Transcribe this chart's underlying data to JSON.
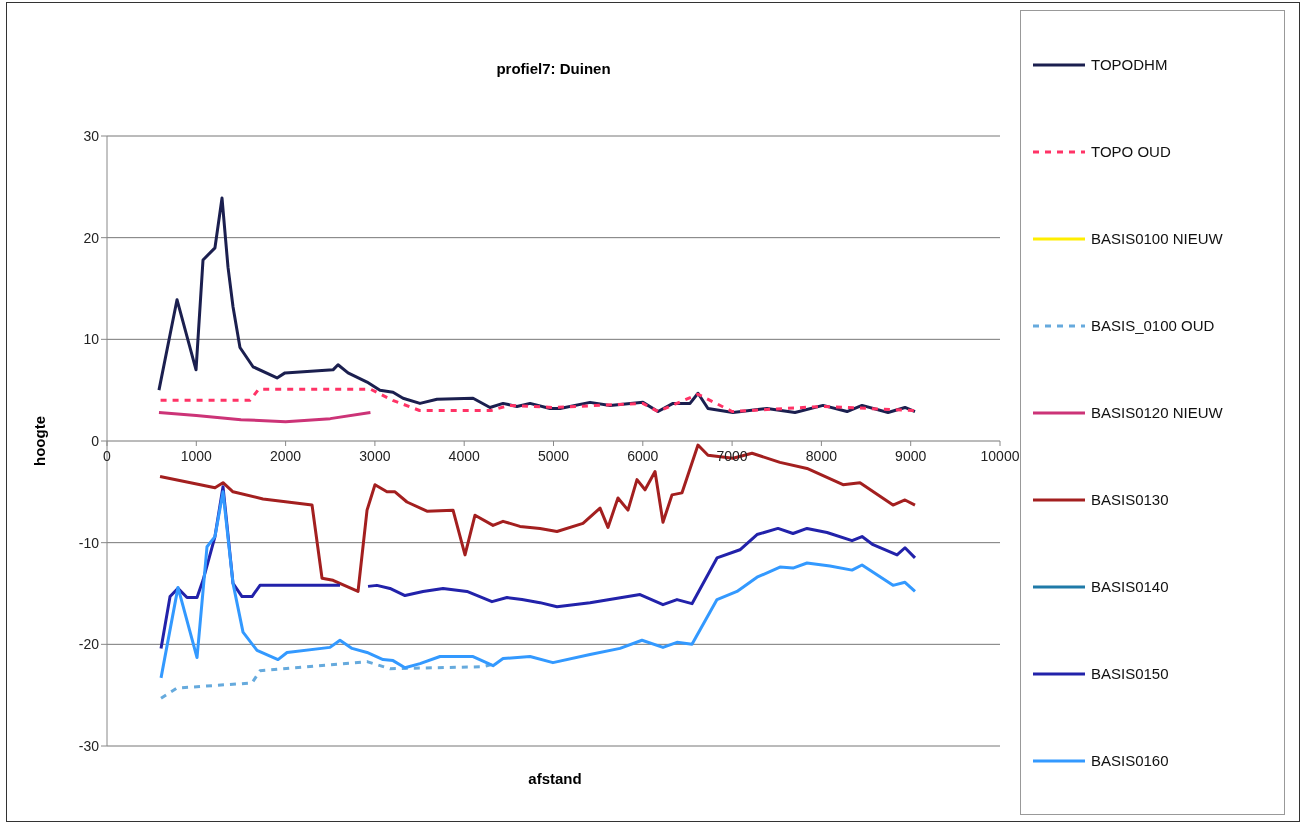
{
  "chart_data": {
    "type": "line",
    "title": "profiel7: Duinen",
    "xlabel": "afstand",
    "ylabel": "hoogte",
    "xlim": [
      0,
      10000
    ],
    "xticks": [
      0,
      1000,
      2000,
      3000,
      4000,
      5000,
      6000,
      7000,
      8000,
      9000,
      10000
    ],
    "ylim": [
      -30,
      30
    ],
    "yticks": [
      -30,
      -20,
      -10,
      0,
      10,
      20,
      30
    ],
    "grid": "y",
    "legend": "right",
    "series": [
      {
        "name": "TOPODHM",
        "color": "#1b1f4f",
        "line_style": "solid",
        "x": [
          582,
          784,
          997,
          1075,
          1209,
          1288,
          1355,
          1411,
          1489,
          1635,
          1904,
          1993,
          2531,
          2587,
          2699,
          2912,
          3057,
          3203,
          3315,
          3505,
          3695,
          4099,
          4289,
          4435,
          4591,
          4737,
          4961,
          5073,
          5409,
          5633,
          6002,
          6170,
          6338,
          6529,
          6618,
          6730,
          7010,
          7391,
          7704,
          8018,
          8287,
          8455,
          8746,
          8936,
          9048
        ],
        "values": [
          5.0,
          13.9,
          7.0,
          17.8,
          19.0,
          23.9,
          17.1,
          13.2,
          9.2,
          7.3,
          6.2,
          6.7,
          7.0,
          7.5,
          6.7,
          5.8,
          5.0,
          4.8,
          4.2,
          3.7,
          4.1,
          4.2,
          3.3,
          3.7,
          3.4,
          3.7,
          3.2,
          3.2,
          3.8,
          3.5,
          3.8,
          2.9,
          3.7,
          3.7,
          4.7,
          3.2,
          2.8,
          3.2,
          2.8,
          3.5,
          2.9,
          3.5,
          2.8,
          3.3,
          2.9
        ]
      },
      {
        "name": "TOPO OUD",
        "color": "#ff3366",
        "line_style": "dashed",
        "x": [
          600,
          1600,
          1700,
          2950,
          3200,
          3500,
          4300,
          4500,
          5000,
          6000,
          6170,
          6618,
          7000,
          8000,
          9048
        ],
        "values": [
          4.0,
          4.0,
          5.1,
          5.1,
          4.0,
          3.0,
          3.0,
          3.5,
          3.3,
          3.7,
          2.9,
          4.6,
          2.9,
          3.4,
          3.0
        ]
      },
      {
        "name": "BASIS0100 NIEUW",
        "color": "#ffee00",
        "line_style": "solid"
      },
      {
        "name": "BASIS_0100 OUD",
        "color": "#66aadd",
        "line_style": "dashed",
        "x": [
          605,
          784,
          1624,
          1713,
          2912,
          3169,
          4211,
          4345
        ],
        "values": [
          -25.3,
          -24.3,
          -23.8,
          -22.6,
          -21.7,
          -22.4,
          -22.2,
          -21.9
        ]
      },
      {
        "name": "BASIS0120 NIEUW",
        "color": "#cc3377",
        "line_style": "solid",
        "x": [
          582,
          1000,
          1500,
          2000,
          2500,
          2950
        ],
        "values": [
          2.8,
          2.5,
          2.1,
          1.9,
          2.2,
          2.8
        ]
      },
      {
        "name": "BASIS0130",
        "color": "#a31f1f",
        "line_style": "solid",
        "x": [
          594,
          1209,
          1299,
          1411,
          1747,
          2296,
          2408,
          2531,
          2811,
          2912,
          3001,
          3135,
          3225,
          3359,
          3583,
          3875,
          4009,
          4121,
          4323,
          4435,
          4625,
          4849,
          5039,
          5330,
          5521,
          5610,
          5722,
          5834,
          5935,
          6025,
          6137,
          6226,
          6327,
          6439,
          6618,
          6730,
          7010,
          7223,
          7536,
          7839,
          8242,
          8432,
          8802,
          8936,
          9048
        ],
        "values": [
          -3.5,
          -4.6,
          -4.1,
          -5.0,
          -5.7,
          -6.3,
          -13.5,
          -13.7,
          -14.8,
          -6.8,
          -4.3,
          -5.0,
          -5.0,
          -6.0,
          -6.9,
          -6.8,
          -11.2,
          -7.3,
          -8.3,
          -7.9,
          -8.4,
          -8.6,
          -8.9,
          -8.1,
          -6.6,
          -8.5,
          -5.6,
          -6.8,
          -3.8,
          -4.8,
          -3.0,
          -8.0,
          -5.3,
          -5.1,
          -0.4,
          -1.4,
          -1.7,
          -1.2,
          -2.1,
          -2.7,
          -4.3,
          -4.1,
          -6.3,
          -5.8,
          -6.3
        ]
      },
      {
        "name": "BASIS0140",
        "color": "#1f7aa8",
        "line_style": "solid"
      },
      {
        "name": "BASIS0150",
        "color": "#2222aa",
        "line_style": "solid",
        "x": [
          605,
          706,
          795,
          896,
          1008,
          1075,
          1209,
          1299,
          1411,
          1512,
          1624,
          1713,
          2609,
          2750,
          2923,
          3023,
          3169,
          3337,
          3539,
          3763,
          4031,
          4311,
          4479,
          4647,
          4849,
          5039,
          5409,
          5969,
          6226,
          6383,
          6551,
          6831,
          7088,
          7279,
          7514,
          7682,
          7839,
          8063,
          8343,
          8455,
          8578,
          8847,
          8936,
          9048
        ],
        "values": [
          -20.4,
          -15.3,
          -14.5,
          -15.4,
          -15.4,
          -13.7,
          -9.4,
          -4.5,
          -14.0,
          -15.3,
          -15.3,
          -14.2,
          -14.2,
          null,
          -14.3,
          -14.2,
          -14.5,
          -15.2,
          -14.8,
          -14.5,
          -14.8,
          -15.8,
          -15.4,
          -15.6,
          -15.9,
          -16.3,
          -15.9,
          -15.1,
          -16.1,
          -15.6,
          -16.0,
          -11.5,
          -10.7,
          -9.2,
          -8.6,
          -9.1,
          -8.6,
          -9.0,
          -9.8,
          -9.4,
          -10.2,
          -11.2,
          -10.5,
          -11.5
        ]
      },
      {
        "name": "BASIS0160",
        "color": "#3399ff",
        "line_style": "solid",
        "x": [
          605,
          795,
          1008,
          1120,
          1209,
          1299,
          1411,
          1523,
          1680,
          1915,
          2016,
          2497,
          2609,
          2744,
          2912,
          3091,
          3203,
          3337,
          3505,
          3729,
          4099,
          4323,
          4435,
          4737,
          4994,
          5409,
          5745,
          5991,
          6226,
          6383,
          6551,
          6831,
          7055,
          7279,
          7536,
          7682,
          7839,
          8096,
          8343,
          8455,
          8802,
          8936,
          9048
        ],
        "values": [
          -23.3,
          -14.4,
          -21.3,
          -10.4,
          -9.4,
          -5.0,
          -14.0,
          -18.8,
          -20.6,
          -21.5,
          -20.8,
          -20.3,
          -19.6,
          -20.4,
          -20.8,
          -21.5,
          -21.6,
          -22.3,
          -21.9,
          -21.2,
          -21.2,
          -22.1,
          -21.4,
          -21.2,
          -21.8,
          -21.0,
          -20.4,
          -19.6,
          -20.3,
          -19.8,
          -20.0,
          -15.6,
          -14.8,
          -13.4,
          -12.4,
          -12.5,
          -12.0,
          -12.3,
          -12.7,
          -12.2,
          -14.2,
          -13.9,
          -14.8
        ]
      }
    ]
  }
}
